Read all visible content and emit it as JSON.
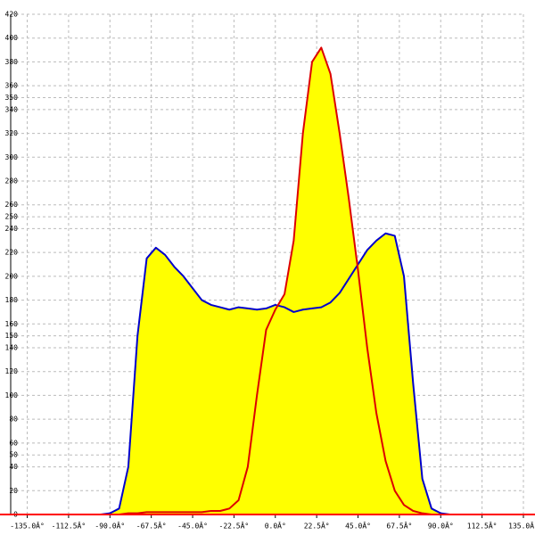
{
  "chart_data": {
    "type": "area",
    "x": [
      -95,
      -90,
      -85,
      -80,
      -75,
      -70,
      -65,
      -60,
      -55,
      -50,
      -45,
      -40,
      -35,
      -30,
      -25,
      -20,
      -15,
      -10,
      -5,
      0,
      5,
      10,
      15,
      20,
      25,
      30,
      35,
      40,
      45,
      50,
      55,
      60,
      65,
      70,
      75,
      80,
      85,
      90,
      95
    ],
    "series": [
      {
        "color": "#0000cc",
        "values": [
          0,
          1,
          5,
          40,
          150,
          215,
          224,
          218,
          208,
          200,
          190,
          180,
          176,
          174,
          172,
          174,
          173,
          172,
          173,
          176,
          174,
          170,
          172,
          173,
          174,
          178,
          186,
          198,
          210,
          222,
          230,
          236,
          234,
          200,
          110,
          30,
          5,
          1,
          0
        ]
      },
      {
        "color": "#dd0000",
        "values": [
          0,
          0,
          0,
          1,
          1,
          2,
          2,
          2,
          2,
          2,
          2,
          2,
          3,
          3,
          5,
          12,
          40,
          100,
          155,
          172,
          185,
          230,
          320,
          380,
          392,
          370,
          320,
          265,
          205,
          140,
          85,
          45,
          20,
          8,
          3,
          1,
          0,
          0,
          0
        ]
      }
    ],
    "fill": "#ffff00",
    "baseline_color": "#ff0000",
    "xlim": [
      -144,
      135
    ],
    "ylim": [
      0,
      420
    ],
    "xticks": [
      {
        "value": -135,
        "label": "-135.0Â°"
      },
      {
        "value": -112.5,
        "label": "-112.5Â°"
      },
      {
        "value": -90,
        "label": "-90.0Â°"
      },
      {
        "value": -67.5,
        "label": "-67.5Â°"
      },
      {
        "value": -45,
        "label": "-45.0Â°"
      },
      {
        "value": -22.5,
        "label": "-22.5Â°"
      },
      {
        "value": 0,
        "label": "0.0Â°"
      },
      {
        "value": 22.5,
        "label": "22.5Â°"
      },
      {
        "value": 45,
        "label": "45.0Â°"
      },
      {
        "value": 67.5,
        "label": "67.5Â°"
      },
      {
        "value": 90,
        "label": "90.0Â°"
      },
      {
        "value": 112.5,
        "label": "112.5Â°"
      },
      {
        "value": 135,
        "label": "135.0Â°"
      }
    ],
    "yticks": [
      0,
      20,
      40,
      50,
      60,
      80,
      100,
      120,
      140,
      150,
      160,
      180,
      200,
      220,
      240,
      250,
      260,
      280,
      300,
      320,
      340,
      350,
      360,
      380,
      400,
      420
    ],
    "grid": true
  }
}
